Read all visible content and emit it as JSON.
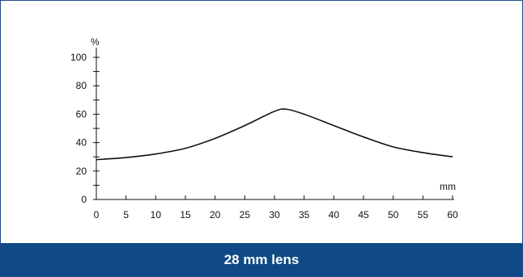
{
  "caption": "28 mm lens",
  "chart_data": {
    "type": "line",
    "ylabel": "%",
    "xlabel": "mm",
    "xlim": [
      0,
      60
    ],
    "ylim": [
      0,
      100
    ],
    "x_ticks": [
      "0",
      "5",
      "10",
      "15",
      "20",
      "25",
      "30",
      "35",
      "40",
      "45",
      "50",
      "55",
      "60"
    ],
    "y_ticks": [
      "0",
      "20",
      "40",
      "60",
      "80",
      "100"
    ],
    "grid": false,
    "series": [
      {
        "x": [
          0,
          5,
          10,
          15,
          20,
          25,
          30,
          32,
          35,
          40,
          45,
          50,
          55,
          60
        ],
        "y": [
          28,
          29.5,
          32,
          36,
          43,
          52,
          62,
          63.5,
          60,
          52,
          44,
          37,
          33,
          30
        ]
      }
    ]
  },
  "colors": {
    "line": "#111111",
    "caption_bg": "#0f4a86",
    "border": "#1e4a8c"
  }
}
